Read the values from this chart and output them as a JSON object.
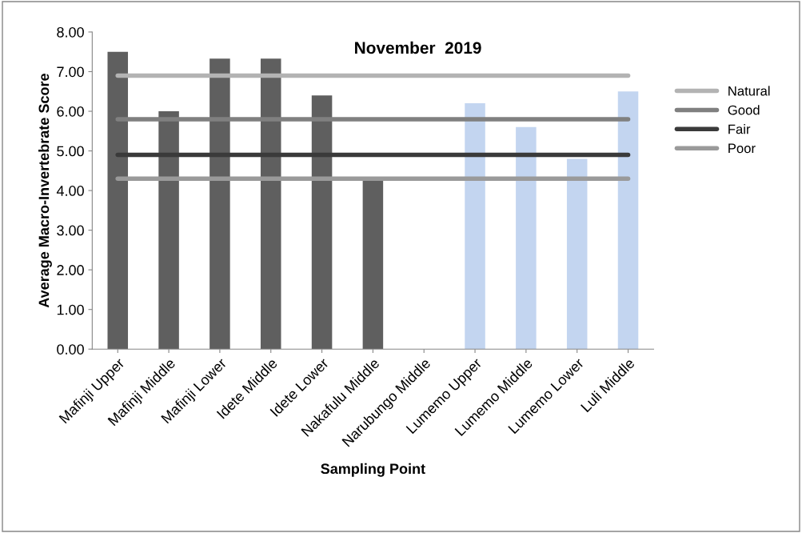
{
  "chart_data": {
    "type": "bar",
    "title": "November  2019",
    "xlabel": "Sampling Point",
    "ylabel": "Average Macro-Invertebrate Score",
    "categories": [
      "Mafinji Upper",
      "Mafinji Middle",
      "Mafinji Lower",
      "Idete Middle",
      "Idete Lower",
      "Nakafulu Middle",
      "Narubungo Middle",
      "Lumemo Upper",
      "Lumemo Middle",
      "Lumemo Lower",
      "Luli Middle"
    ],
    "series": [
      {
        "values": [
          7.5,
          6.0,
          7.33,
          7.33,
          6.4,
          4.25,
          null,
          6.2,
          5.6,
          4.8,
          6.5
        ],
        "colors": [
          "#5f5f5f",
          "#5f5f5f",
          "#5f5f5f",
          "#5f5f5f",
          "#5f5f5f",
          "#5f5f5f",
          "#5f5f5f",
          "#c3d5f0",
          "#c3d5f0",
          "#c3d5f0",
          "#c3d5f0"
        ]
      },
      {
        "type": "line",
        "name": "Natural",
        "color": "#b3b3b3",
        "values": [
          6.9,
          6.9,
          6.9,
          6.9,
          6.9,
          6.9,
          6.9,
          6.9,
          6.9,
          6.9,
          6.9
        ]
      },
      {
        "type": "line",
        "name": "Good",
        "color": "#808080",
        "values": [
          5.8,
          5.8,
          5.8,
          5.8,
          5.8,
          5.8,
          5.8,
          5.8,
          5.8,
          5.8,
          5.8
        ]
      },
      {
        "type": "line",
        "name": "Fair",
        "color": "#3a3a3a",
        "values": [
          4.9,
          4.9,
          4.9,
          4.9,
          4.9,
          4.9,
          4.9,
          4.9,
          4.9,
          4.9,
          4.9
        ]
      },
      {
        "type": "line",
        "name": "Poor",
        "color": "#9a9a9a",
        "values": [
          4.3,
          4.3,
          4.3,
          4.3,
          4.3,
          4.3,
          4.3,
          4.3,
          4.3,
          4.3,
          4.3
        ]
      }
    ],
    "ylim": [
      0,
      8
    ],
    "yticks": [
      {
        "value": 0,
        "label": "0.00"
      },
      {
        "value": 1,
        "label": "1.00"
      },
      {
        "value": 2,
        "label": "2.00"
      },
      {
        "value": 3,
        "label": "3.00"
      },
      {
        "value": 4,
        "label": "4.00"
      },
      {
        "value": 5,
        "label": "5.00"
      },
      {
        "value": 6,
        "label": "6.00"
      },
      {
        "value": 7,
        "label": "7.00"
      },
      {
        "value": 8,
        "label": "8.00"
      }
    ],
    "legend": "right",
    "line_style": "solid",
    "marker": "none"
  }
}
